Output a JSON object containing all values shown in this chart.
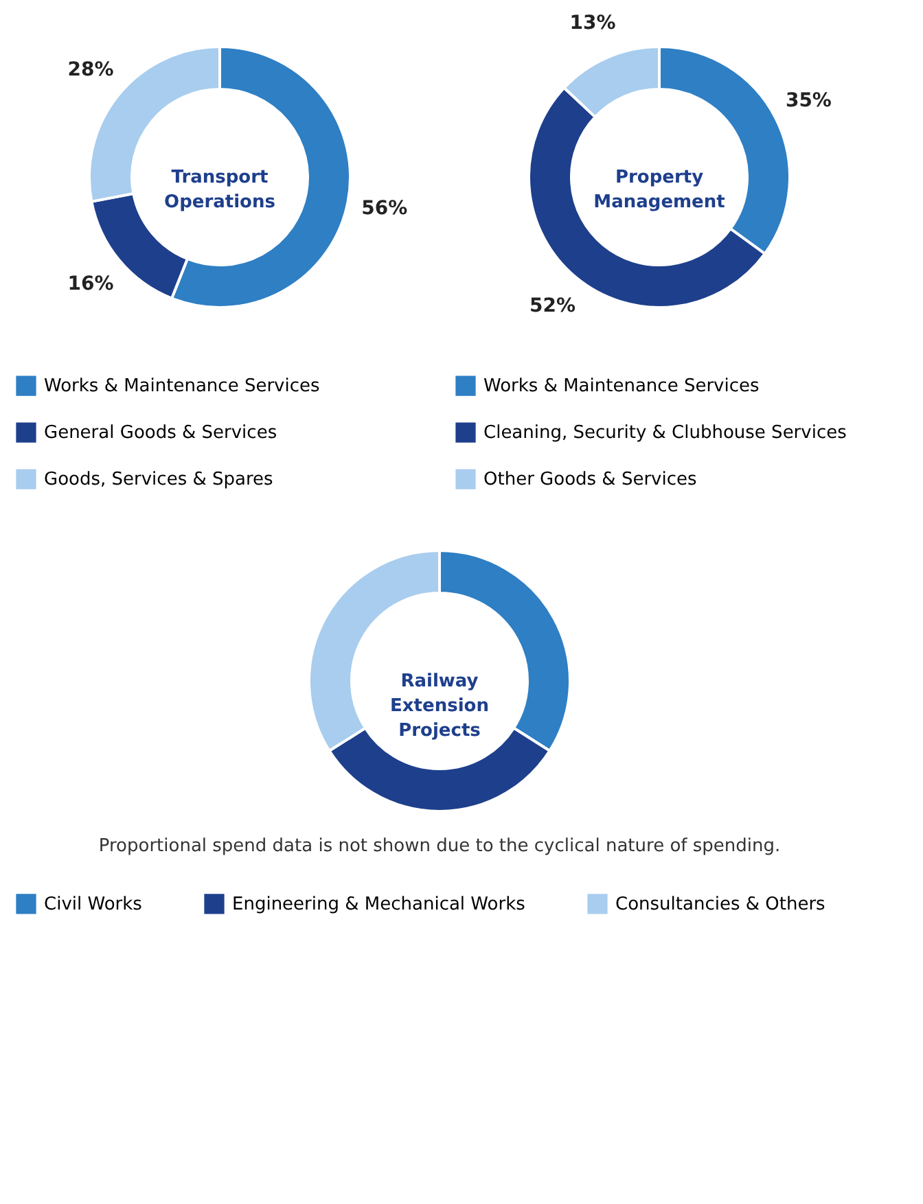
{
  "chart_data": [
    {
      "type": "donut",
      "title": "Transport Operations",
      "categories": [
        "Works & Maintenance Services",
        "General Goods & Services",
        "Goods, Services & Spares"
      ],
      "values": [
        56,
        16,
        28
      ],
      "colors": [
        "#2e7fc4",
        "#1e3f8c",
        "#a8cdee"
      ],
      "value_labels": [
        "56%",
        "16%",
        "28%"
      ],
      "legend": "bottom"
    },
    {
      "type": "donut",
      "title": "Property Management",
      "categories": [
        "Works & Maintenance Services",
        "Cleaning, Security & Clubhouse Services",
        "Other Goods & Services"
      ],
      "values": [
        35,
        52,
        13
      ],
      "colors": [
        "#2e7fc4",
        "#1e3f8c",
        "#a8cdee"
      ],
      "value_labels": [
        "35%",
        "52%",
        "13%"
      ],
      "legend": "bottom"
    },
    {
      "type": "donut",
      "title": "Railway Extension Projects",
      "categories": [
        "Civil Works",
        "Engineering & Mechanical Works",
        "Consultancies & Others"
      ],
      "values": [
        34,
        32,
        34
      ],
      "colors": [
        "#2e7fc4",
        "#1e3f8c",
        "#a8cdee"
      ],
      "annotations": [
        "Proportional spend data is not shown due to the cyclical nature of spending."
      ],
      "legend": "bottom"
    }
  ]
}
